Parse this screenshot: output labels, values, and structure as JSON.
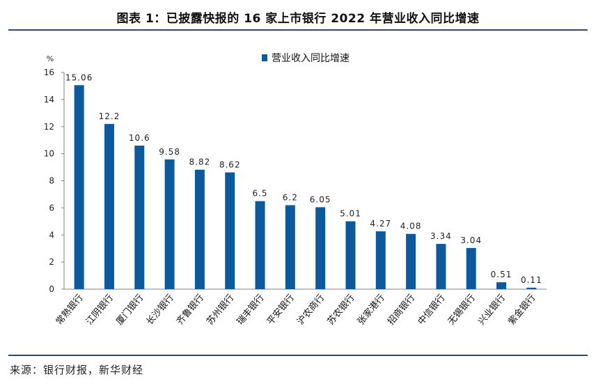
{
  "header": {
    "title": "图表 1：已披露快报的 16 家上市银行 2022 年营业收入同比增速"
  },
  "footer": {
    "source": "来源：银行财报，新华财经"
  },
  "chart_data": {
    "type": "bar",
    "title": "",
    "ylabel": "%",
    "xlabel": "",
    "ylim": [
      0,
      16
    ],
    "yticks": [
      0,
      2,
      4,
      6,
      8,
      10,
      12,
      14,
      16
    ],
    "grid": false,
    "legend_position": "top",
    "categories": [
      "常熟银行",
      "江阴银行",
      "厦门银行",
      "长沙银行",
      "齐鲁银行",
      "苏州银行",
      "瑞丰银行",
      "平安银行",
      "沪农商行",
      "苏农银行",
      "张家港行",
      "招商银行",
      "中信银行",
      "无锡银行",
      "兴业银行",
      "紫金银行"
    ],
    "series": [
      {
        "name": "营业收入同比增速",
        "color": "#0b5aa0",
        "values": [
          15.06,
          12.2,
          10.6,
          9.58,
          8.82,
          8.62,
          6.5,
          6.2,
          6.05,
          5.01,
          4.27,
          4.08,
          3.34,
          3.04,
          0.51,
          0.11
        ],
        "labels": [
          "15.06",
          "12.2",
          "10.6",
          "9.58",
          "8.82",
          "8.62",
          "6.5",
          "6.2",
          "6.05",
          "5.01",
          "4.27",
          "4.08",
          "3.34",
          "3.04",
          "0.51",
          "0.11"
        ]
      }
    ]
  }
}
